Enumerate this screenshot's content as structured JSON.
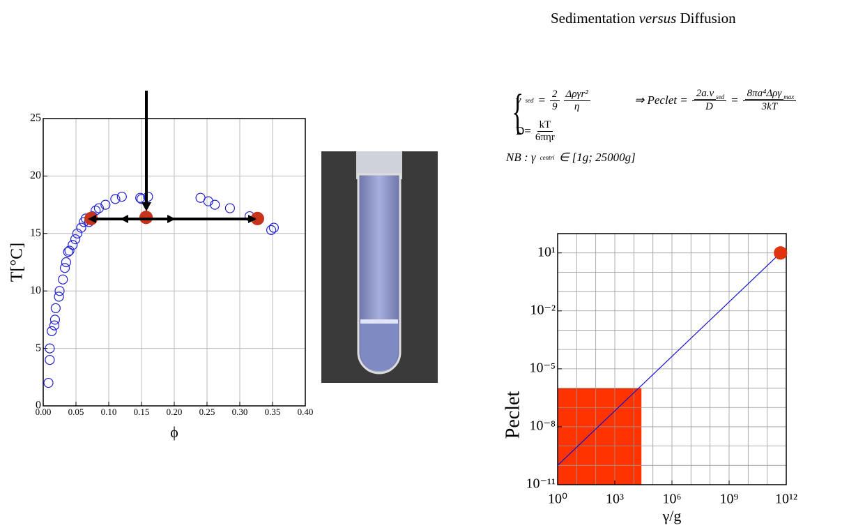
{
  "title": {
    "before": "Sedimentation ",
    "italic": "versus",
    "after": " Diffusion"
  },
  "equations": {
    "v_lhs": "v",
    "v_sub": "sed",
    "v_eq": "=",
    "f1_num": "2",
    "f1_den": "9",
    "f2_num": "Δργr²",
    "f2_den": "η",
    "d_lhs": "D=",
    "d_num": "kT",
    "d_den": "6πηr",
    "implies": "⇒ Peclet =",
    "p1_num": "2a.v",
    "p1_sub": "sed",
    "p1_den": "D",
    "p_eq": "=",
    "p2_num": "8πa⁴Δργ",
    "p2_sub": "max",
    "p2_den": "3kT",
    "nb": "NB : γ",
    "nb_sub": "centri",
    "nb_rest": "∈ [1g; 25000g]"
  },
  "chart_data": [
    {
      "type": "scatter",
      "xlabel": "ϕ",
      "ylabel": "T[°C]",
      "xlim": [
        0,
        0.4
      ],
      "ylim": [
        0,
        25
      ],
      "xticks": [
        {
          "value": 0,
          "label": "0.00"
        },
        {
          "value": 0.05,
          "label": "0.05"
        },
        {
          "value": 0.1,
          "label": "0.10"
        },
        {
          "value": 0.15,
          "label": "0.15"
        },
        {
          "value": 0.2,
          "label": "0.20"
        },
        {
          "value": 0.25,
          "label": "0.25"
        },
        {
          "value": 0.3,
          "label": "0.30"
        },
        {
          "value": 0.35,
          "label": "0.35"
        },
        {
          "value": 0.4,
          "label": "0.40"
        }
      ],
      "yticks": [
        0,
        5,
        10,
        15,
        20,
        25
      ],
      "grid": true,
      "series": [
        {
          "color": "#1f1fd0",
          "marker": "open",
          "x": [
            0.008,
            0.01,
            0.01,
            0.013,
            0.017,
            0.018,
            0.019,
            0.024,
            0.025,
            0.03,
            0.033,
            0.035,
            0.038,
            0.04,
            0.045,
            0.049,
            0.052,
            0.058,
            0.062,
            0.065,
            0.07,
            0.075,
            0.08,
            0.085,
            0.095,
            0.11,
            0.12,
            0.148,
            0.15,
            0.16,
            0.24,
            0.252,
            0.262,
            0.285,
            0.315,
            0.348,
            0.352
          ],
          "values": [
            2.0,
            4.0,
            5.0,
            6.5,
            7.0,
            7.5,
            8.5,
            9.5,
            10.0,
            11.0,
            12.0,
            12.5,
            13.4,
            13.5,
            14.0,
            14.5,
            15.0,
            15.5,
            16.0,
            16.3,
            16.0,
            16.5,
            17.0,
            17.2,
            17.5,
            18.0,
            18.2,
            18.1,
            18.0,
            18.2,
            18.1,
            17.8,
            17.5,
            17.2,
            16.5,
            15.3,
            15.5
          ]
        },
        {
          "color": "#c8331b",
          "marker": "filled",
          "x": [
            0.073,
            0.157,
            0.327
          ],
          "values": [
            16.3,
            16.4,
            16.3
          ]
        }
      ]
    },
    {
      "type": "line",
      "xlabel": "γ/g",
      "ylabel": "Peclet",
      "log": true,
      "xlim": [
        1,
        1000000000000.0
      ],
      "ylim": [
        1e-11,
        100
      ],
      "xticks": [
        {
          "value": 1,
          "label": "10⁰"
        },
        {
          "value": 1000,
          "label": "10³"
        },
        {
          "value": 1000000,
          "label": "10⁶"
        },
        {
          "value": 1000000000,
          "label": "10⁹"
        },
        {
          "value": 1000000000000,
          "label": "10¹²"
        }
      ],
      "yticks": [
        {
          "value": 10,
          "label": "10¹"
        },
        {
          "value": 0.01,
          "label": "10⁻²"
        },
        {
          "value": 1e-05,
          "label": "10⁻⁵"
        },
        {
          "value": 1e-08,
          "label": "10⁻⁸"
        },
        {
          "value": 1e-11,
          "label": "10⁻¹¹"
        }
      ],
      "xgrid": [
        1,
        10,
        100,
        1000,
        10000,
        100000,
        1000000,
        10000000,
        100000000,
        1000000000,
        10000000000,
        100000000000,
        1000000000000
      ],
      "ygrid": [
        1e-11,
        1e-10,
        1e-09,
        1e-08,
        1e-07,
        1e-06,
        1e-05,
        0.0001,
        0.001,
        0.01,
        0.1,
        1,
        10,
        100
      ],
      "highlight": {
        "x": [
          1,
          25000
        ],
        "y": [
          1e-11,
          1e-06
        ],
        "color": "#ff3300"
      },
      "series": [
        {
          "color": "#1010d0",
          "x": [
            1,
            500000000000
          ],
          "values": [
            1e-10,
            10
          ]
        },
        {
          "color": "#e0330f",
          "marker": "filled",
          "x": [
            500000000000
          ],
          "values": [
            10
          ]
        }
      ]
    }
  ]
}
